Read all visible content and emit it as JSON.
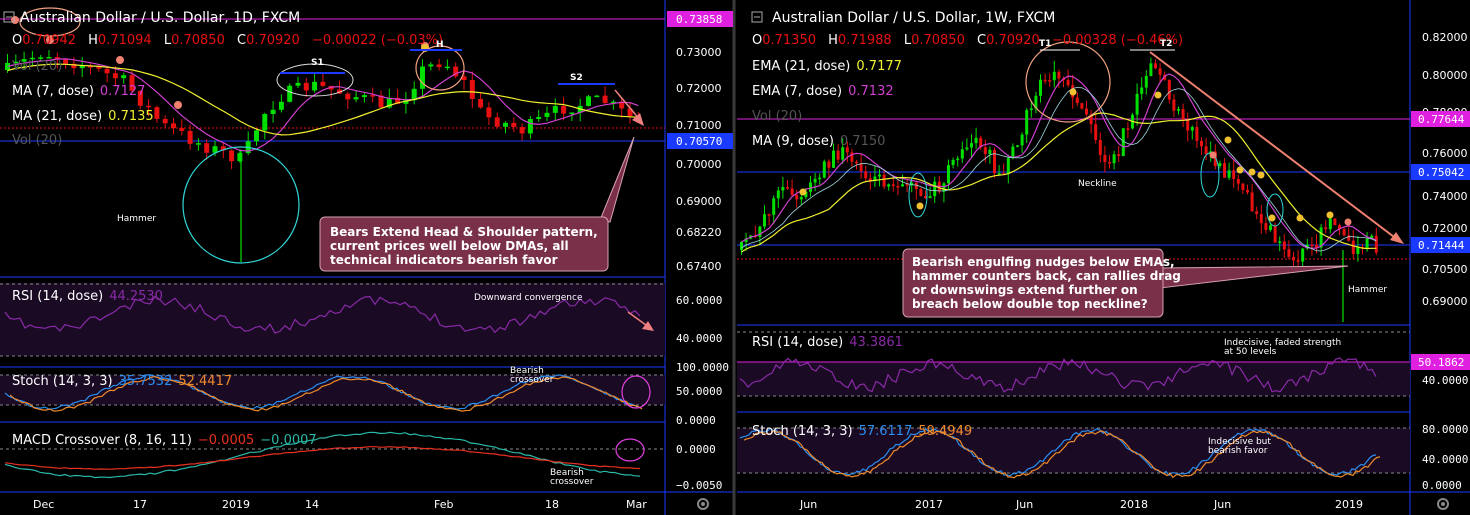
{
  "colors": {
    "bg": "#000000",
    "up": "#00e000",
    "down": "#e81010",
    "ema_yellow": "#f0f030",
    "ma_magenta": "#d040d0",
    "blue_line": "#1a3aff",
    "magenta_line": "#e020e0",
    "rsi_line": "#8a2aa8",
    "stoch_k": "#2a8ef0",
    "stoch_d": "#f08a2a",
    "macd_line": "#2ab8a8",
    "signal_line": "#e83020",
    "callout_bg": "#7a3048",
    "callout_border": "#d8a0b0",
    "axis_text": "#ffffff",
    "panel_tint": "#1a0a24"
  },
  "left_chart": {
    "title": "Australian Dollar / U.S. Dollar, 1D, FXCM",
    "ohlc": {
      "o_label": "O",
      "o": "0.70942",
      "h_label": "H",
      "h": "0.71094",
      "l_label": "L",
      "l": "0.70850",
      "c_label": "C",
      "c": "0.70920",
      "chg": "−0.00022 (−0.03%)"
    },
    "legend": {
      "vol": "Vol (20)",
      "ma7_label": "MA (7, dose)",
      "ma7_value": "0.7127",
      "ma21_label": "MA (21, dose)",
      "ma21_value": "0.7135",
      "vol2": "Vol (20)"
    },
    "price_axis": [
      "0.73000",
      "0.72000",
      "0.71000",
      "0.70000",
      "0.69000",
      "0.68220",
      "0.67400"
    ],
    "price_badges": {
      "top": "0.73858",
      "blue": "0.70570"
    },
    "annotations": {
      "s1": "S1",
      "h": "H",
      "s2": "S2",
      "hammer": "Hammer",
      "callout": [
        "Bears Extend Head & Shoulder pattern,",
        "current prices well below DMAs, all",
        "technical indicators bearish favor"
      ],
      "rsi_note": "Downward convergence",
      "stoch_note": [
        "Bearish",
        "crossover"
      ],
      "macd_note": [
        "Bearish",
        "crossover"
      ]
    },
    "rsi": {
      "label": "RSI (14, dose)",
      "value": "44.2530",
      "axis": [
        "60.0000",
        "40.0000"
      ]
    },
    "stoch": {
      "label": "Stoch (14, 3, 3)",
      "k": "35.7532",
      "d": "52.4417",
      "axis": [
        "100.0000",
        "50.0000",
        "0.0000"
      ]
    },
    "macd": {
      "label": "MACD Crossover (8, 16, 11)",
      "v1": "−0.0005",
      "v2": "−0.0007",
      "axis": [
        "0.0000",
        "−0.0050"
      ]
    },
    "time_axis": [
      "Dec",
      "17",
      "2019",
      "14",
      "Feb",
      "18",
      "Mar"
    ]
  },
  "right_chart": {
    "title": "Australian Dollar / U.S. Dollar, 1W, FXCM",
    "ohlc": {
      "o_label": "O",
      "o": "0.71350",
      "h_label": "H",
      "h": "0.71988",
      "l_label": "L",
      "l": "0.70850",
      "c_label": "C",
      "c": "0.70920",
      "chg": "−0.00328 (−0.46%)"
    },
    "legend": {
      "ema21_label": "EMA (21, dose)",
      "ema21_value": "0.7177",
      "ema7_label": "EMA (7, dose)",
      "ema7_value": "0.7132",
      "vol": "Vol (20)",
      "ma9_label": "MA (9, dose)",
      "ma9_value": "0.7150"
    },
    "price_axis": [
      "0.82000",
      "0.80000",
      "0.78000",
      "0.76000",
      "0.74000",
      "0.72000",
      "0.70500",
      "0.69000"
    ],
    "price_badges": {
      "magenta": "0.77644",
      "blue": "0.75042",
      "green": "0.71444"
    },
    "annotations": {
      "t1": "T1",
      "t2": "T2",
      "neckline": "Neckline",
      "hammer": "Hammer",
      "callout": [
        "Bearish engulfing nudges below EMAs,",
        "hammer counters back, can rallies drag",
        "or downswings extend further on",
        "breach below double top neckline?"
      ],
      "rsi_note": [
        "Indecisive, faded strength",
        "at 50 levels"
      ],
      "stoch_note": [
        "Indecisive but",
        "bearish favor"
      ]
    },
    "rsi": {
      "label": "RSI (14, dose)",
      "value": "43.3861",
      "axis": [
        "40.0000"
      ],
      "badge": "50.1862"
    },
    "stoch": {
      "label": "Stoch (14, 3, 3)",
      "k": "57.6117",
      "d": "59.4949",
      "axis": [
        "80.0000",
        "40.0000",
        "0.0000"
      ]
    },
    "time_axis": [
      "Jun",
      "2017",
      "Jun",
      "2018",
      "Jun",
      "2019"
    ]
  }
}
